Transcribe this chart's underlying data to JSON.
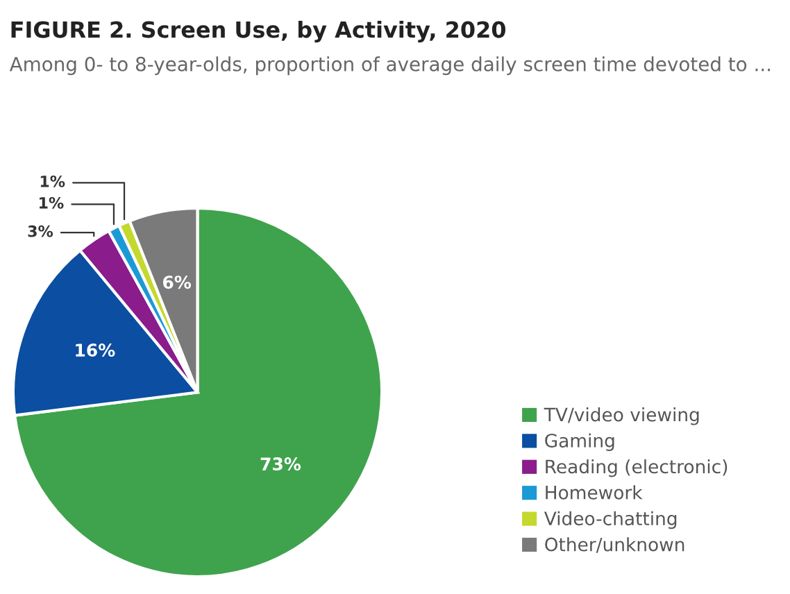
{
  "chart_data": {
    "type": "pie",
    "title": "FIGURE 2. Screen Use, by Activity, 2020",
    "subtitle": "Among 0- to 8-year-olds, proportion of average daily screen time devoted to ...",
    "categories": [
      "TV/video viewing",
      "Gaming",
      "Reading (electronic)",
      "Homework",
      "Video-chatting",
      "Other/unknown"
    ],
    "values": [
      73,
      16,
      3,
      1,
      1,
      6
    ],
    "colors": [
      "#3fa34d",
      "#0b4ea2",
      "#8a1c8c",
      "#1b9ad6",
      "#c5d82e",
      "#7a7a7a"
    ],
    "value_labels": [
      "73%",
      "16%",
      "3%",
      "1%",
      "1%",
      "6%"
    ],
    "legend": "right"
  }
}
